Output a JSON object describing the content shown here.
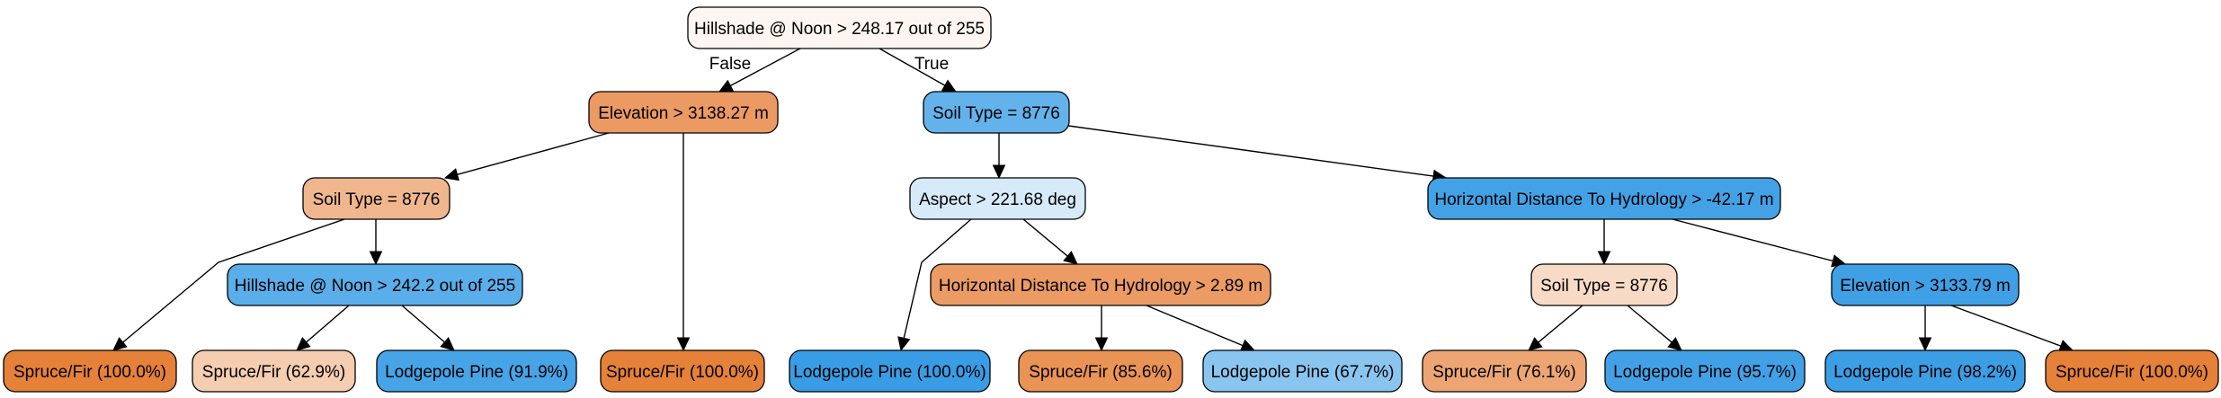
{
  "tree": {
    "nodes": {
      "root": {
        "label": "Hillshade @ Noon > 248.17 out of 255",
        "fill": "#fdf5f0"
      },
      "elev1": {
        "label": "Elevation > 3138.27 m",
        "fill": "#ec9a64"
      },
      "soil1": {
        "label": "Soil Type = 8776",
        "fill": "#f0b68e"
      },
      "hill2": {
        "label": "Hillshade @ Noon > 242.2 out of 255",
        "fill": "#5aaeea"
      },
      "leaf1": {
        "label": "Spruce/Fir (100.0%)",
        "fill": "#e58139"
      },
      "leaf2": {
        "label": "Spruce/Fir (62.9%)",
        "fill": "#f5cdb0"
      },
      "leaf3": {
        "label": "Lodgepole Pine (91.9%)",
        "fill": "#47a4e7"
      },
      "leaf4": {
        "label": "Spruce/Fir (100.0%)",
        "fill": "#e58139"
      },
      "soil2": {
        "label": "Soil Type = 8776",
        "fill": "#63b2eb"
      },
      "aspect": {
        "label": "Aspect > 221.68 deg",
        "fill": "#d6eafa"
      },
      "hdist1": {
        "label": "Horizontal Distance To Hydrology > 2.89 m",
        "fill": "#eb9b63"
      },
      "leaf5": {
        "label": "Lodgepole Pine (100.0%)",
        "fill": "#399de5"
      },
      "leaf6": {
        "label": "Spruce/Fir (85.6%)",
        "fill": "#e99355"
      },
      "leaf7": {
        "label": "Lodgepole Pine (67.7%)",
        "fill": "#8ac5f0"
      },
      "hdist2": {
        "label": "Horizontal Distance To Hydrology > -42.17 m",
        "fill": "#43a2e6"
      },
      "soil3": {
        "label": "Soil Type = 8776",
        "fill": "#f8dbc6"
      },
      "elev2": {
        "label": "Elevation > 3133.79 m",
        "fill": "#40a0e6"
      },
      "leaf8": {
        "label": "Spruce/Fir (76.1%)",
        "fill": "#eda673"
      },
      "leaf9": {
        "label": "Lodgepole Pine (95.7%)",
        "fill": "#42a1e6"
      },
      "leaf10": {
        "label": "Lodgepole Pine (98.2%)",
        "fill": "#3c9ee5"
      },
      "leaf11": {
        "label": "Spruce/Fir (100.0%)",
        "fill": "#e58139"
      }
    },
    "edges": [
      {
        "from": "root",
        "to": "elev1",
        "label": "False"
      },
      {
        "from": "root",
        "to": "soil2",
        "label": "True"
      },
      {
        "from": "elev1",
        "to": "soil1",
        "label": ""
      },
      {
        "from": "elev1",
        "to": "leaf4",
        "label": ""
      },
      {
        "from": "soil1",
        "to": "leaf1",
        "label": ""
      },
      {
        "from": "soil1",
        "to": "hill2",
        "label": ""
      },
      {
        "from": "hill2",
        "to": "leaf2",
        "label": ""
      },
      {
        "from": "hill2",
        "to": "leaf3",
        "label": ""
      },
      {
        "from": "soil2",
        "to": "aspect",
        "label": ""
      },
      {
        "from": "soil2",
        "to": "hdist2",
        "label": ""
      },
      {
        "from": "aspect",
        "to": "leaf5",
        "label": ""
      },
      {
        "from": "aspect",
        "to": "hdist1",
        "label": ""
      },
      {
        "from": "hdist1",
        "to": "leaf6",
        "label": ""
      },
      {
        "from": "hdist1",
        "to": "leaf7",
        "label": ""
      },
      {
        "from": "hdist2",
        "to": "soil3",
        "label": ""
      },
      {
        "from": "hdist2",
        "to": "elev2",
        "label": ""
      },
      {
        "from": "soil3",
        "to": "leaf8",
        "label": ""
      },
      {
        "from": "soil3",
        "to": "leaf9",
        "label": ""
      },
      {
        "from": "elev2",
        "to": "leaf10",
        "label": ""
      },
      {
        "from": "elev2",
        "to": "leaf11",
        "label": ""
      }
    ]
  }
}
